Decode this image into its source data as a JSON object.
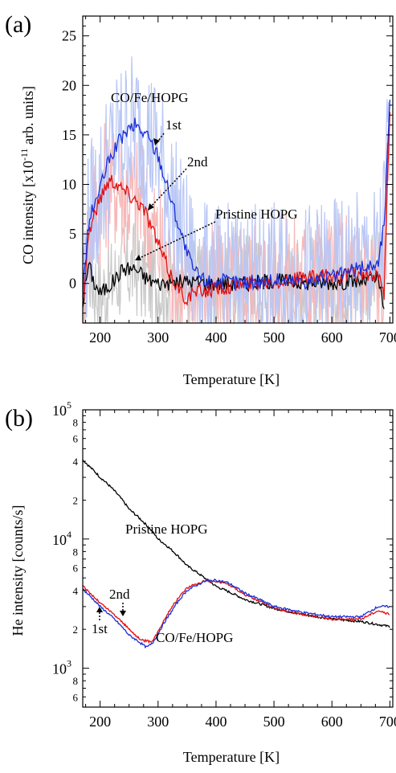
{
  "chart_data": [
    {
      "panel_label": "(a)",
      "type": "line",
      "xlabel": "Temperature [K]",
      "ylabel": "CO intensity [x10",
      "ylabel_exp": "-11",
      "ylabel_tail": " arb. units]",
      "xlim": [
        170,
        705
      ],
      "ylim": [
        -4,
        27
      ],
      "xticks": [
        200,
        300,
        400,
        500,
        600,
        700
      ],
      "yticks": [
        0,
        5,
        10,
        15,
        20,
        25
      ],
      "annotations": {
        "sample": "CO/Fe/HOPG",
        "first": "1st",
        "second": "2nd",
        "pristine": "Pristine HOPG"
      },
      "colors": {
        "first": "#1a2fd6",
        "first_raw": "#b9c7f5",
        "second": "#e01010",
        "second_raw": "#f7b8b8",
        "pristine": "#000000",
        "pristine_raw": "#c8c8c8"
      },
      "series": [
        {
          "key": "first",
          "x": [
            170,
            180,
            190,
            200,
            210,
            220,
            230,
            240,
            250,
            260,
            270,
            280,
            290,
            300,
            310,
            320,
            330,
            340,
            350,
            360,
            370,
            380,
            400,
            450,
            500,
            550,
            600,
            650,
            680,
            690,
            700
          ],
          "y": [
            -1,
            6,
            8,
            9.5,
            11.5,
            13,
            14,
            15,
            15.5,
            16,
            15.5,
            15,
            14,
            13,
            11,
            9,
            7,
            5,
            3,
            1.5,
            0.8,
            0.3,
            0.2,
            0.1,
            0.3,
            0.2,
            0.6,
            1.5,
            2,
            6,
            18
          ]
        },
        {
          "key": "second",
          "x": [
            170,
            180,
            190,
            200,
            210,
            220,
            230,
            240,
            250,
            260,
            270,
            280,
            290,
            300,
            310,
            320,
            330,
            340,
            350,
            360,
            400,
            450,
            500,
            550,
            600,
            650,
            680,
            690,
            700
          ],
          "y": [
            -2,
            5,
            7,
            8.5,
            10,
            10.5,
            10,
            9.5,
            9,
            8.5,
            8,
            7,
            5.5,
            4,
            2.5,
            1,
            0,
            -1,
            -1.5,
            -1,
            -0.5,
            0,
            0.3,
            0.5,
            0.7,
            1,
            0.5,
            -1,
            18
          ]
        },
        {
          "key": "pristine",
          "x": [
            170,
            180,
            190,
            200,
            220,
            240,
            260,
            280,
            300,
            350,
            400,
            450,
            500,
            550,
            600,
            650,
            680,
            690
          ],
          "y": [
            -2,
            2,
            0,
            -1,
            0,
            1.5,
            1.5,
            0.5,
            0,
            0.2,
            0,
            0,
            0.3,
            0.1,
            0.1,
            0.2,
            0.5,
            -3
          ]
        }
      ]
    },
    {
      "panel_label": "(b)",
      "type": "line",
      "yscale": "log",
      "xlabel": "Temperature [K]",
      "ylabel": "He intensity [counts/s]",
      "xlim": [
        170,
        705
      ],
      "ylim": [
        500,
        100000
      ],
      "xticks": [
        200,
        300,
        400,
        500,
        600,
        700
      ],
      "y_decade_base": "10",
      "y_decade_exps": [
        "3",
        "4",
        "5"
      ],
      "y_minor_labels": [
        "2",
        "4",
        "6",
        "8"
      ],
      "annotations": {
        "sample": "CO/Fe/HOPG",
        "first": "1st",
        "second": "2nd",
        "pristine": "Pristine HOPG"
      },
      "colors": {
        "first": "#1a2fd6",
        "second": "#e01010",
        "pristine": "#000000"
      },
      "series": [
        {
          "key": "pristine",
          "x": [
            170,
            180,
            200,
            250,
            300,
            350,
            380,
            400,
            450,
            500,
            550,
            600,
            650,
            700
          ],
          "y": [
            41000,
            37000,
            30000,
            17000,
            10000,
            6200,
            5000,
            4300,
            3400,
            2900,
            2600,
            2400,
            2300,
            2100
          ]
        },
        {
          "key": "first",
          "x": [
            170,
            180,
            200,
            220,
            250,
            280,
            290,
            300,
            320,
            350,
            380,
            400,
            420,
            450,
            500,
            550,
            600,
            650,
            680,
            700
          ],
          "y": [
            4100,
            3700,
            3000,
            2500,
            1800,
            1450,
            1550,
            1850,
            2600,
            4000,
            4700,
            4800,
            4600,
            3800,
            3000,
            2700,
            2500,
            2500,
            3000,
            3000
          ]
        },
        {
          "key": "second",
          "x": [
            170,
            180,
            200,
            220,
            250,
            270,
            290,
            300,
            320,
            350,
            380,
            400,
            420,
            450,
            500,
            550,
            600,
            650,
            680,
            700
          ],
          "y": [
            4300,
            3900,
            3200,
            2700,
            2000,
            1650,
            1600,
            1900,
            2800,
            4200,
            4750,
            4700,
            4500,
            3700,
            2900,
            2600,
            2400,
            2400,
            2800,
            2600
          ]
        }
      ]
    }
  ]
}
